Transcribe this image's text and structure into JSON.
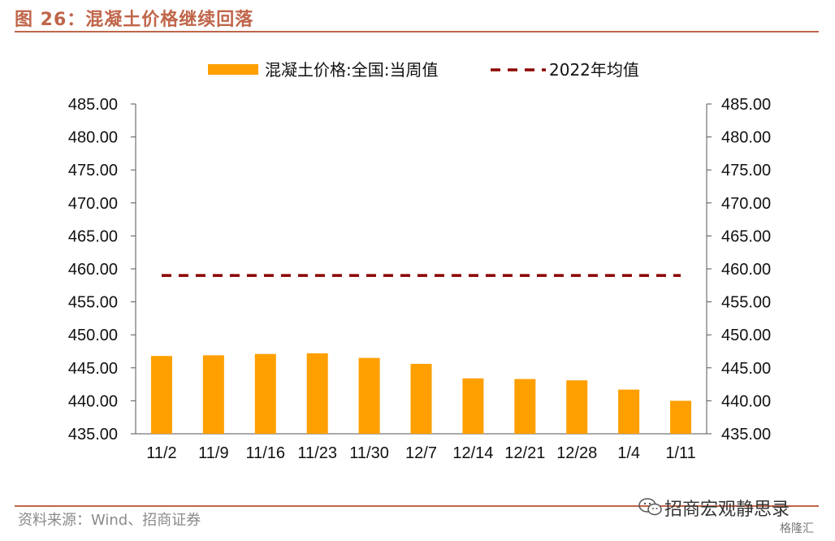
{
  "header": {
    "figure_title": "图 26：混凝土价格继续回落"
  },
  "footer": {
    "source": "资料来源：Wind、招商证券",
    "watermark": "招商宏观静思录",
    "brand": "格隆汇"
  },
  "colors": {
    "bar": "#ff9f00",
    "dashed_line": "#8b0000",
    "accent": "#c0654a"
  },
  "chart_data": {
    "type": "bar",
    "categories": [
      "11/2",
      "11/9",
      "11/16",
      "11/23",
      "11/30",
      "12/7",
      "12/14",
      "12/21",
      "12/28",
      "1/4",
      "1/11"
    ],
    "series": [
      {
        "name": "混凝土价格:全国:当周值",
        "type": "bar",
        "values": [
          446.8,
          446.9,
          447.1,
          447.2,
          446.5,
          445.6,
          443.4,
          443.3,
          443.1,
          441.7,
          440.0
        ]
      },
      {
        "name": "2022年均值",
        "type": "line",
        "style": "dashed",
        "values": [
          459.0,
          459.0,
          459.0,
          459.0,
          459.0,
          459.0,
          459.0,
          459.0,
          459.0,
          459.0,
          459.0
        ]
      }
    ],
    "ylim": [
      435,
      485
    ],
    "yticks": [
      "485.00",
      "480.00",
      "475.00",
      "470.00",
      "465.00",
      "460.00",
      "455.00",
      "450.00",
      "445.00",
      "440.00",
      "435.00"
    ],
    "secondary_y": {
      "ylim": [
        435,
        485
      ]
    },
    "legend_position": "top-center",
    "grid": false
  }
}
